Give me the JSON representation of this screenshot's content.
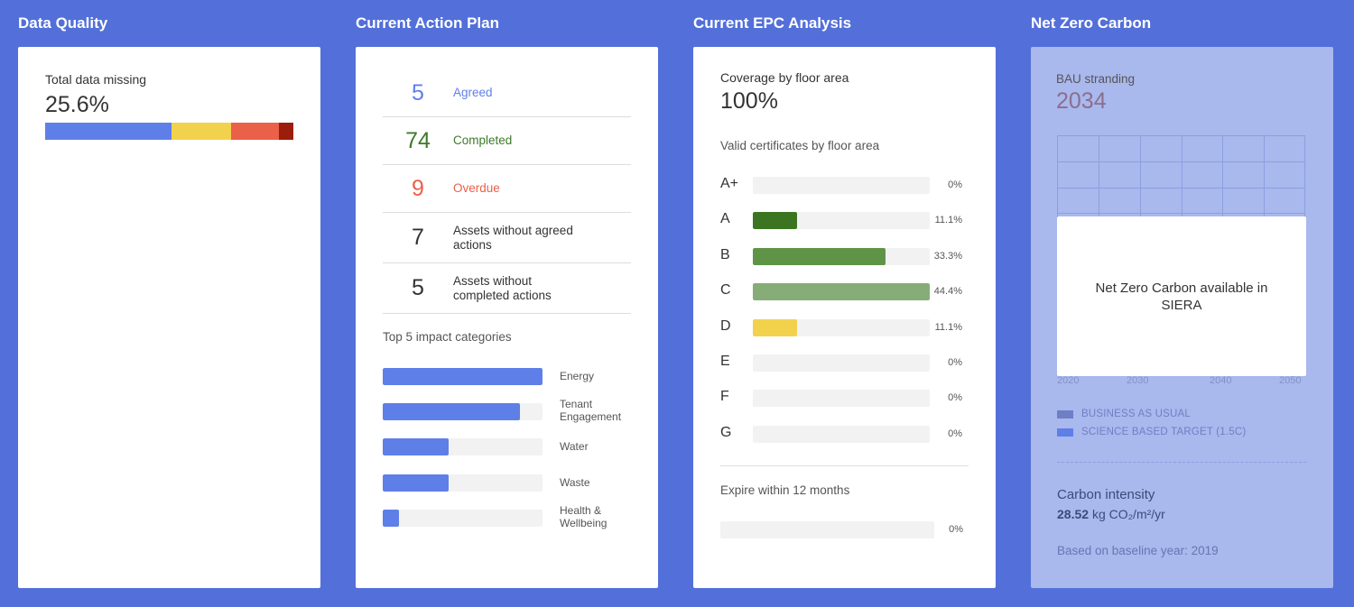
{
  "columns": {
    "data_quality": "Data Quality",
    "action_plan": "Current Action Plan",
    "epc": "Current EPC Analysis",
    "net_zero": "Net Zero Carbon"
  },
  "data_quality": {
    "label": "Total data missing",
    "value": "25.6%",
    "segments": [
      {
        "fraction": 0.51,
        "color": "#5f7fe8"
      },
      {
        "fraction": 0.24,
        "color": "#f2d24d"
      },
      {
        "fraction": 0.19,
        "color": "#ea6048"
      },
      {
        "fraction": 0.06,
        "color": "#9b1d0c"
      }
    ]
  },
  "action_plan": {
    "rows": [
      {
        "count": "5",
        "label": "Agreed",
        "color": "#5f7fe8"
      },
      {
        "count": "74",
        "label": "Completed",
        "color": "#3d7a29"
      },
      {
        "count": "9",
        "label": "Overdue",
        "color": "#ea6048"
      },
      {
        "count": "7",
        "label": "Assets without agreed actions",
        "color": "#333333"
      },
      {
        "count": "5",
        "label": "Assets without completed actions",
        "color": "#333333"
      }
    ],
    "impact_title": "Top 5 impact categories",
    "impact": [
      {
        "label": "Energy",
        "fraction": 1.0
      },
      {
        "label": "Tenant Engagement",
        "fraction": 0.86
      },
      {
        "label": "Water",
        "fraction": 0.41
      },
      {
        "label": "Waste",
        "fraction": 0.41
      },
      {
        "label": "Health & Wellbeing",
        "fraction": 0.1
      }
    ]
  },
  "epc": {
    "coverage_label": "Coverage by floor area",
    "coverage_value": "100%",
    "valid_label": "Valid certificates by floor area",
    "grades": [
      {
        "grade": "A+",
        "pct": "0%",
        "fraction": 0,
        "color": "#3b7521"
      },
      {
        "grade": "A",
        "pct": "11.1%",
        "fraction": 0.25,
        "color": "#3b7521"
      },
      {
        "grade": "B",
        "pct": "33.3%",
        "fraction": 0.75,
        "color": "#5f9447"
      },
      {
        "grade": "C",
        "pct": "44.4%",
        "fraction": 1.0,
        "color": "#86ac78"
      },
      {
        "grade": "D",
        "pct": "11.1%",
        "fraction": 0.25,
        "color": "#f2d24d"
      },
      {
        "grade": "E",
        "pct": "0%",
        "fraction": 0,
        "color": "#cccccc"
      },
      {
        "grade": "F",
        "pct": "0%",
        "fraction": 0,
        "color": "#cccccc"
      },
      {
        "grade": "G",
        "pct": "0%",
        "fraction": 0,
        "color": "#cccccc"
      }
    ],
    "expire_label": "Expire within 12 months",
    "expire_pct": "0%"
  },
  "net_zero": {
    "bau_label": "BAU stranding",
    "bau_value": "2034",
    "overlay_text": "Net Zero Carbon available in SIERA",
    "x_ticks": [
      "2020",
      "2030",
      "2040",
      "2050"
    ],
    "legend": [
      {
        "label": "BUSINESS AS USUAL",
        "color": "#6f7fc4"
      },
      {
        "label": "SCIENCE BASED TARGET (1.5C)",
        "color": "#5f7fe8"
      }
    ],
    "intensity_label": "Carbon intensity",
    "intensity_value": "28.52",
    "intensity_unit": "kg CO₂/m²/yr",
    "baseline": "Based on baseline year: 2019"
  }
}
